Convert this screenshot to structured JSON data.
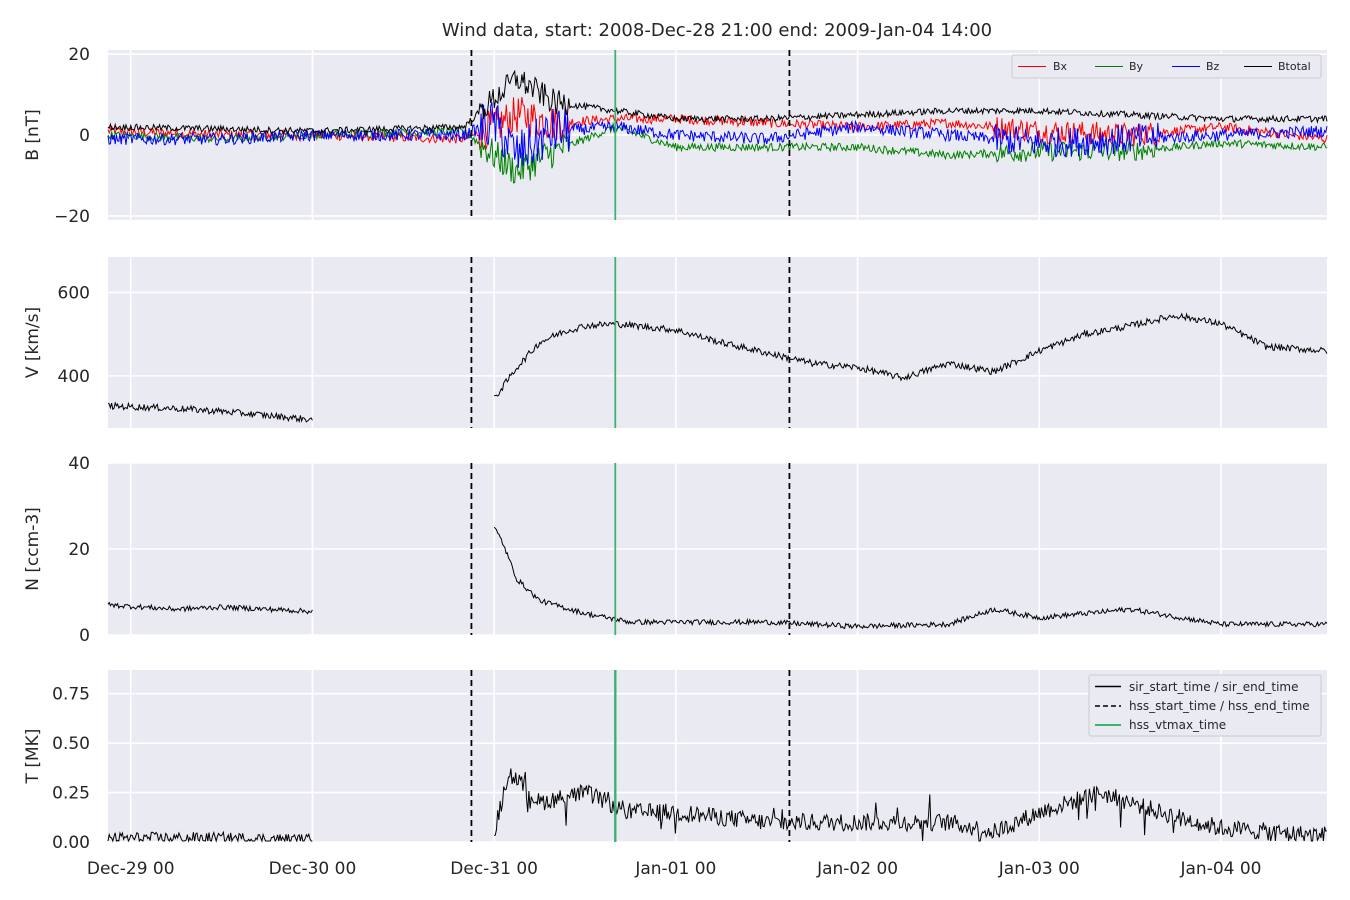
{
  "title": "Wind data, start: 2008-Dec-28 21:00  end: 2009-Jan-04 14:00",
  "x_ticks": [
    "Dec-29 00",
    "Dec-30 00",
    "Dec-31 00",
    "Jan-01 00",
    "Jan-02 00",
    "Jan-03 00",
    "Jan-04 00"
  ],
  "colors": {
    "background": "#eaeaf2",
    "grid": "#ffffff",
    "bx": "#ff0000",
    "by": "#008000",
    "bz": "#0000ff",
    "btotal": "#000000",
    "vtmax": "#3cb371"
  },
  "events": {
    "hss_start_time": "2008-12-30T21:00",
    "hss_vtmax_time": "2008-12-31T16:00",
    "hss_end_time": "2009-01-01T15:00"
  },
  "legend_b": [
    "Bx",
    "By",
    "Bz",
    "Btotal"
  ],
  "legend_events": [
    "sir_start_time / sir_end_time",
    "hss_start_time / hss_end_time",
    "hss_vtmax_time"
  ],
  "chart_data": [
    {
      "type": "line",
      "ylabel": "B [nT]",
      "yticks": [
        "20",
        "0",
        "−20"
      ],
      "ylim": [
        -21,
        21
      ],
      "x_range": [
        "2008-12-28T21:00",
        "2009-01-04T14:00"
      ],
      "legend": "top-right",
      "series": [
        {
          "name": "Bx",
          "x": [
            "2008-12-28T21:00",
            "2008-12-29T12:00",
            "2008-12-30T00:00",
            "2008-12-30T20:00",
            "2008-12-31T00:00",
            "2008-12-31T03:00",
            "2008-12-31T08:00",
            "2008-12-31T16:00",
            "2009-01-01T00:00",
            "2009-01-01T12:00",
            "2009-01-02T00:00",
            "2009-01-02T12:00",
            "2009-01-03T00:00",
            "2009-01-03T12:00",
            "2009-01-04T00:00",
            "2009-01-04T14:00"
          ],
          "values": [
            1,
            0,
            0,
            -1,
            2,
            5,
            3,
            4,
            4,
            3,
            2,
            3,
            1,
            0,
            2,
            -1
          ]
        },
        {
          "name": "By",
          "x": [
            "2008-12-28T21:00",
            "2008-12-29T12:00",
            "2008-12-30T00:00",
            "2008-12-30T20:00",
            "2008-12-31T00:00",
            "2008-12-31T03:00",
            "2008-12-31T08:00",
            "2008-12-31T16:00",
            "2009-01-01T00:00",
            "2009-01-01T12:00",
            "2009-01-02T00:00",
            "2009-01-02T12:00",
            "2009-01-03T00:00",
            "2009-01-03T12:00",
            "2009-01-04T00:00",
            "2009-01-04T14:00"
          ],
          "values": [
            0,
            -1,
            0,
            1,
            -5,
            -9,
            -4,
            2,
            -3,
            -3,
            -3,
            -5,
            -4,
            -4,
            -2,
            -3
          ]
        },
        {
          "name": "Bz",
          "x": [
            "2008-12-28T21:00",
            "2008-12-29T12:00",
            "2008-12-30T00:00",
            "2008-12-30T20:00",
            "2008-12-31T00:00",
            "2008-12-31T03:00",
            "2008-12-31T08:00",
            "2008-12-31T16:00",
            "2009-01-01T00:00",
            "2009-01-01T12:00",
            "2009-01-02T00:00",
            "2009-01-02T12:00",
            "2009-01-03T00:00",
            "2009-01-03T12:00",
            "2009-01-04T00:00",
            "2009-01-04T14:00"
          ],
          "values": [
            -1,
            -1,
            0,
            0,
            3,
            -5,
            1,
            2,
            0,
            -1,
            2,
            0,
            -2,
            -1,
            0,
            1
          ]
        },
        {
          "name": "Btotal",
          "x": [
            "2008-12-28T21:00",
            "2008-12-29T12:00",
            "2008-12-30T00:00",
            "2008-12-30T20:00",
            "2008-12-31T00:00",
            "2008-12-31T03:00",
            "2008-12-31T08:00",
            "2008-12-31T16:00",
            "2009-01-01T00:00",
            "2009-01-01T12:00",
            "2009-01-02T00:00",
            "2009-01-02T12:00",
            "2009-01-03T00:00",
            "2009-01-03T12:00",
            "2009-01-04T00:00",
            "2009-01-04T14:00"
          ],
          "values": [
            2,
            1.5,
            1,
            2,
            9,
            14,
            8,
            6,
            4,
            4,
            5,
            6,
            6,
            5,
            4,
            4
          ]
        }
      ]
    },
    {
      "type": "line",
      "ylabel": "V [km/s]",
      "yticks": [
        "600",
        "400"
      ],
      "ylim": [
        275,
        685
      ],
      "x_range": [
        "2008-12-28T21:00",
        "2009-01-04T14:00"
      ],
      "series": [
        {
          "x": [
            "2008-12-28T21:00",
            "2008-12-29T06:00",
            "2008-12-29T12:00",
            "2008-12-29T18:00",
            "2008-12-30T00:00"
          ],
          "values": [
            328,
            322,
            315,
            305,
            295
          ]
        },
        {
          "x": [
            "2008-12-31T00:00",
            "2008-12-31T03:00",
            "2008-12-31T06:00",
            "2008-12-31T09:00",
            "2008-12-31T12:00",
            "2008-12-31T16:00",
            "2009-01-01T00:00",
            "2009-01-01T06:00",
            "2009-01-01T12:00",
            "2009-01-01T18:00",
            "2009-01-02T00:00",
            "2009-01-02T06:00",
            "2009-01-02T12:00",
            "2009-01-02T18:00",
            "2009-01-03T00:00",
            "2009-01-03T06:00",
            "2009-01-03T12:00",
            "2009-01-03T18:00",
            "2009-01-04T00:00",
            "2009-01-04T06:00",
            "2009-01-04T14:00"
          ],
          "values": [
            345,
            420,
            480,
            505,
            520,
            525,
            510,
            480,
            455,
            430,
            420,
            395,
            430,
            410,
            460,
            500,
            520,
            545,
            525,
            470,
            460
          ]
        }
      ]
    },
    {
      "type": "line",
      "ylabel": "N [ccm-3]",
      "yticks": [
        "40",
        "20",
        "0"
      ],
      "ylim": [
        0,
        40
      ],
      "x_range": [
        "2008-12-28T21:00",
        "2009-01-04T14:00"
      ],
      "series": [
        {
          "x": [
            "2008-12-28T21:00",
            "2008-12-29T06:00",
            "2008-12-29T12:00",
            "2008-12-29T18:00",
            "2008-12-30T00:00"
          ],
          "values": [
            7,
            6,
            6.5,
            6,
            5.5
          ]
        },
        {
          "x": [
            "2008-12-31T00:00",
            "2008-12-31T01:00",
            "2008-12-31T03:00",
            "2008-12-31T06:00",
            "2008-12-31T12:00",
            "2008-12-31T18:00",
            "2009-01-01T00:00",
            "2009-01-01T12:00",
            "2009-01-02T00:00",
            "2009-01-02T12:00",
            "2009-01-02T18:00",
            "2009-01-03T00:00",
            "2009-01-03T12:00",
            "2009-01-04T00:00",
            "2009-01-04T14:00"
          ],
          "values": [
            25,
            22,
            13,
            8,
            5,
            3,
            3,
            3,
            2,
            2.5,
            6,
            4,
            6,
            2.5,
            2.5
          ]
        }
      ]
    },
    {
      "type": "line",
      "ylabel": "T [MK]",
      "yticks": [
        "0.75",
        "0.50",
        "0.25",
        "0.00"
      ],
      "ylim": [
        0,
        0.87
      ],
      "x_range": [
        "2008-12-28T21:00",
        "2009-01-04T14:00"
      ],
      "legend": "top-right",
      "series": [
        {
          "x": [
            "2008-12-28T21:00",
            "2008-12-29T12:00",
            "2008-12-30T00:00"
          ],
          "values": [
            0.02,
            0.02,
            0.01
          ]
        },
        {
          "x": [
            "2008-12-31T00:00",
            "2008-12-31T02:00",
            "2008-12-31T06:00",
            "2008-12-31T12:00",
            "2008-12-31T18:00",
            "2009-01-01T00:00",
            "2009-01-01T12:00",
            "2009-01-02T00:00",
            "2009-01-02T12:00",
            "2009-01-02T18:00",
            "2009-01-03T00:00",
            "2009-01-03T08:00",
            "2009-01-03T16:00",
            "2009-01-04T00:00",
            "2009-01-04T14:00"
          ],
          "values": [
            0.05,
            0.35,
            0.2,
            0.25,
            0.15,
            0.15,
            0.1,
            0.1,
            0.1,
            0.05,
            0.15,
            0.25,
            0.15,
            0.07,
            0.03
          ]
        }
      ]
    }
  ]
}
